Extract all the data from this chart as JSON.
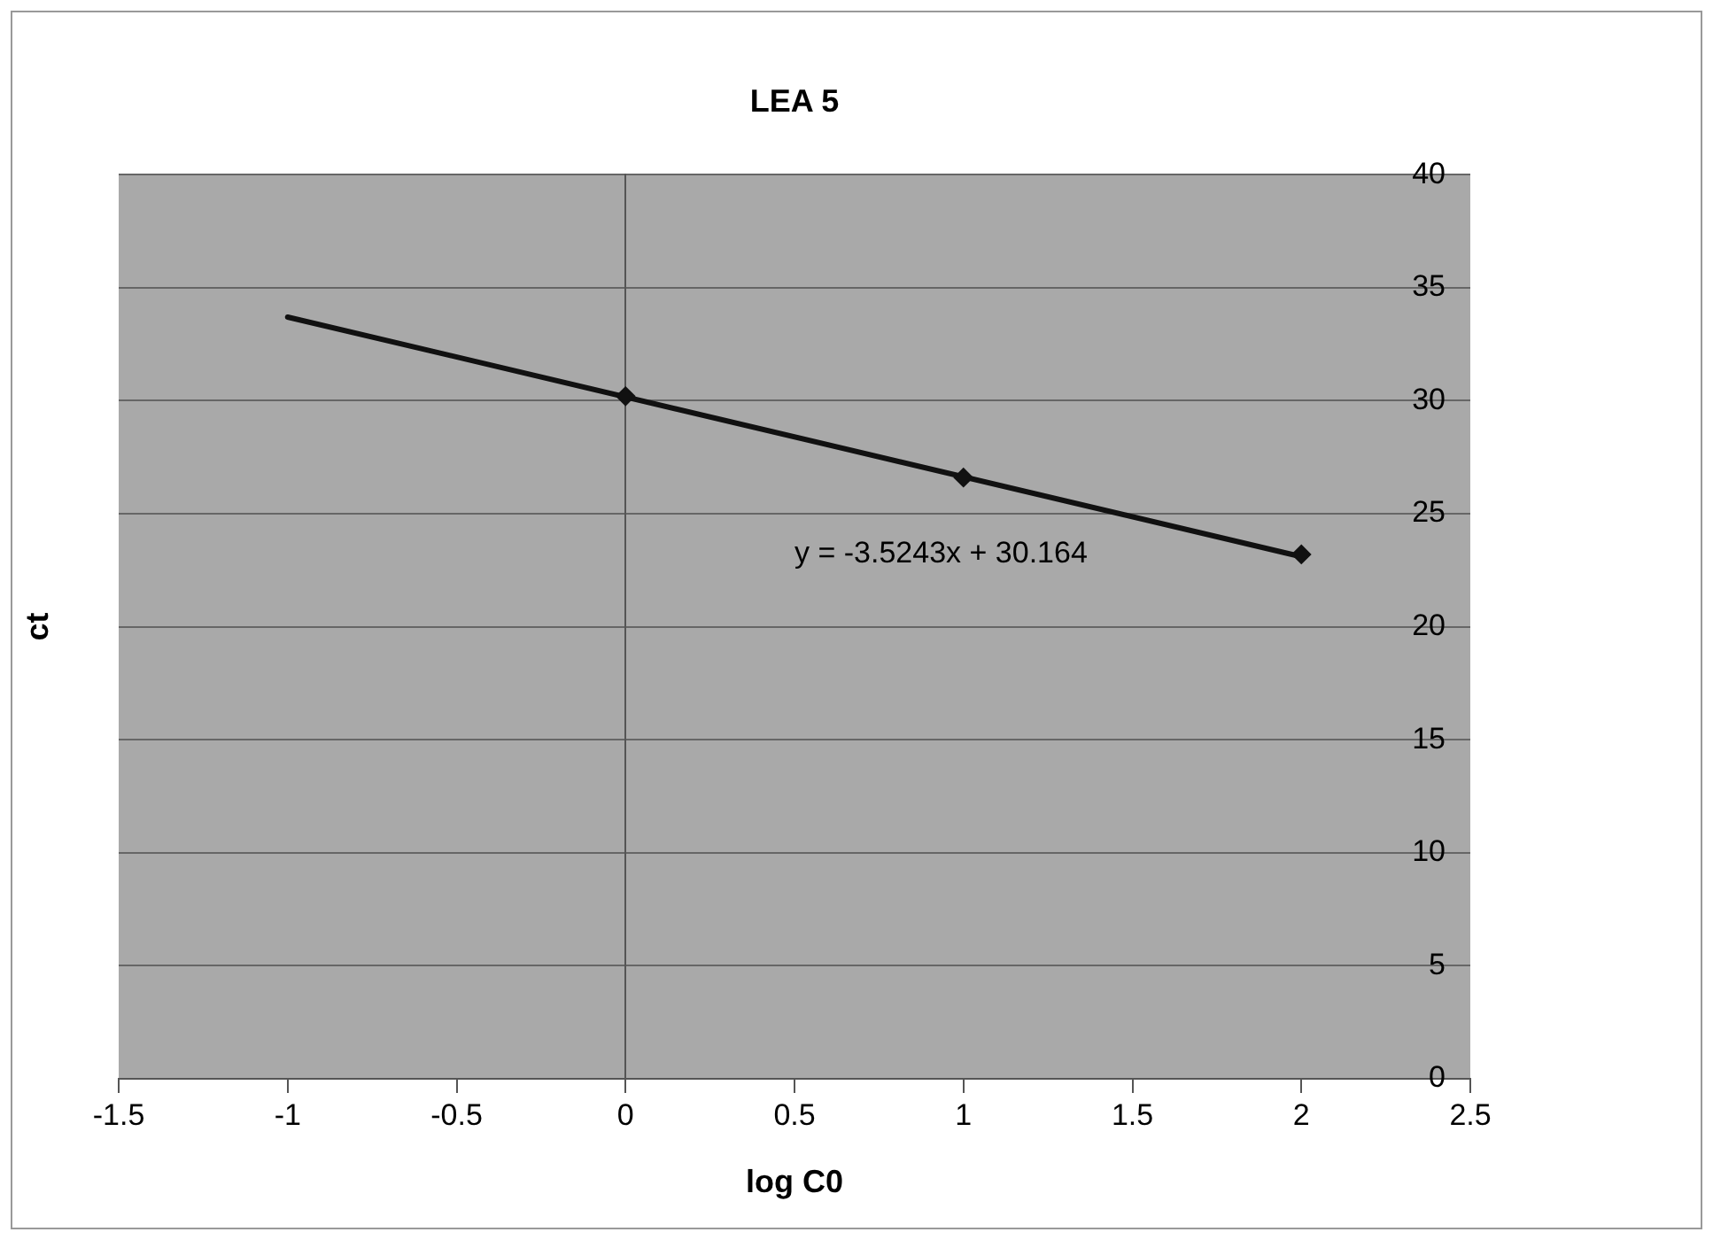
{
  "chart_data": {
    "type": "scatter",
    "title": "LEA 5",
    "xlabel": "log C0",
    "ylabel": "ct",
    "xlim": [
      -1.5,
      2.5
    ],
    "xticks": [
      -1.5,
      -1,
      -0.5,
      0,
      0.5,
      1,
      1.5,
      2,
      2.5
    ],
    "ylim": [
      0,
      40
    ],
    "yticks": [
      0,
      5,
      10,
      15,
      20,
      25,
      30,
      35,
      40
    ],
    "grid": "y",
    "legend": false,
    "marker": "diamond",
    "series": [
      {
        "color": "#111111",
        "x": [
          0,
          1,
          2
        ],
        "values": [
          30.2,
          26.6,
          23.2
        ]
      },
      {
        "type": "line",
        "color": "#111111",
        "marker": "none",
        "x": [
          -1,
          2
        ],
        "values": [
          33.7,
          23.1
        ]
      }
    ],
    "annotations": [
      "y = -3.5243x + 30.164"
    ]
  }
}
